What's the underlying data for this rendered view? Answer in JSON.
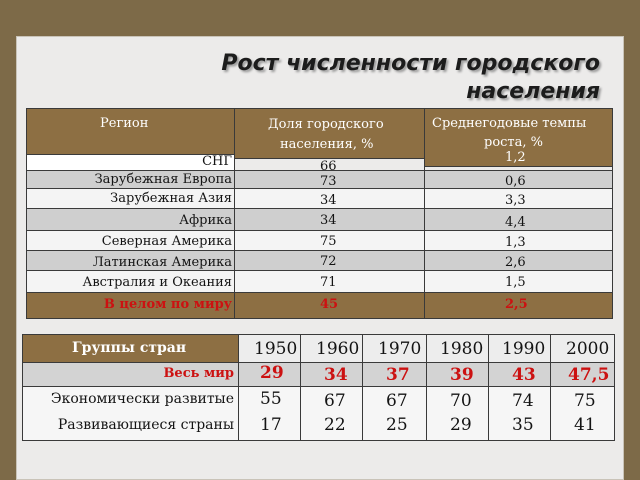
{
  "title": {
    "line1": "Рост численности городского",
    "line2": "населения"
  },
  "table1": {
    "headers": {
      "region": "Регион",
      "share": "Доля городского населения, %",
      "share_l1": "Доля городского",
      "share_l2": "населения, %",
      "growth": "Среднегодовые темпы роста, %",
      "growth_l1": "Среднегодовые темпы",
      "growth_l2": "роста, %"
    },
    "rows": [
      {
        "region": "СНГ",
        "share": "66",
        "growth": "1,2"
      },
      {
        "region": "Зарубежная Европа",
        "share": "73",
        "growth": "0,6"
      },
      {
        "region": "Зарубежная Азия",
        "share": "34",
        "growth": "3,3"
      },
      {
        "region": "Африка",
        "share": "34",
        "growth": "4,4"
      },
      {
        "region": "Северная Америка",
        "share": "75",
        "growth": "1,3"
      },
      {
        "region": "Латинская Америка",
        "share": "72",
        "growth": "2,6"
      },
      {
        "region": "Австралия и Океания",
        "share": "71",
        "growth": "1,5"
      },
      {
        "region": "В целом по миру",
        "share": "45",
        "growth": "2,5"
      }
    ]
  },
  "table2": {
    "header": "Группы стран",
    "years": [
      "1950",
      "1960",
      "1970",
      "1980",
      "1990",
      "2000"
    ],
    "rows": [
      {
        "label": "Весь мир",
        "values": [
          "29",
          "34",
          "37",
          "39",
          "43",
          "47,5"
        ]
      },
      {
        "label": "Экономически развитые",
        "values": [
          "55",
          "67",
          "67",
          "70",
          "74",
          "75"
        ]
      },
      {
        "label": "Развивающиеся страны",
        "values": [
          "17",
          "22",
          "25",
          "29",
          "35",
          "41"
        ]
      }
    ]
  }
}
